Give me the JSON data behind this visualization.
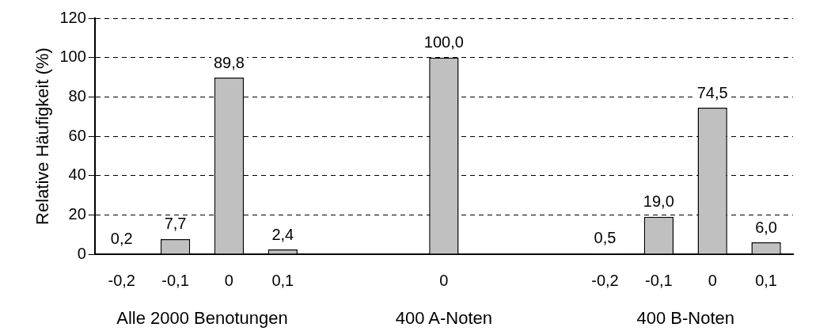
{
  "chart_data": {
    "type": "bar",
    "ylabel": "Relative Häufigkeit (%)",
    "categories": [
      "-0,2",
      "-0,1",
      "0",
      "0,1",
      null,
      null,
      "0",
      null,
      null,
      "-0,2",
      "-0,1",
      "0",
      "0,1"
    ],
    "values": [
      0.2,
      7.7,
      89.8,
      2.4,
      null,
      null,
      100.0,
      null,
      null,
      0.5,
      19.0,
      74.5,
      6.0
    ],
    "value_labels": [
      "0,2",
      "7,7",
      "89,8",
      "2,4",
      null,
      null,
      "100,0",
      null,
      null,
      "0,5",
      "19,0",
      "74,5",
      "6,0"
    ],
    "color": "#c0c0c0",
    "ylim": [
      0,
      120
    ],
    "yticks": [
      0,
      20,
      40,
      60,
      80,
      100,
      120
    ],
    "grid": "y",
    "legend": false,
    "annotations": [
      "Alle 2000 Benotungen",
      "400 A-Noten",
      "400 B-Noten"
    ]
  }
}
